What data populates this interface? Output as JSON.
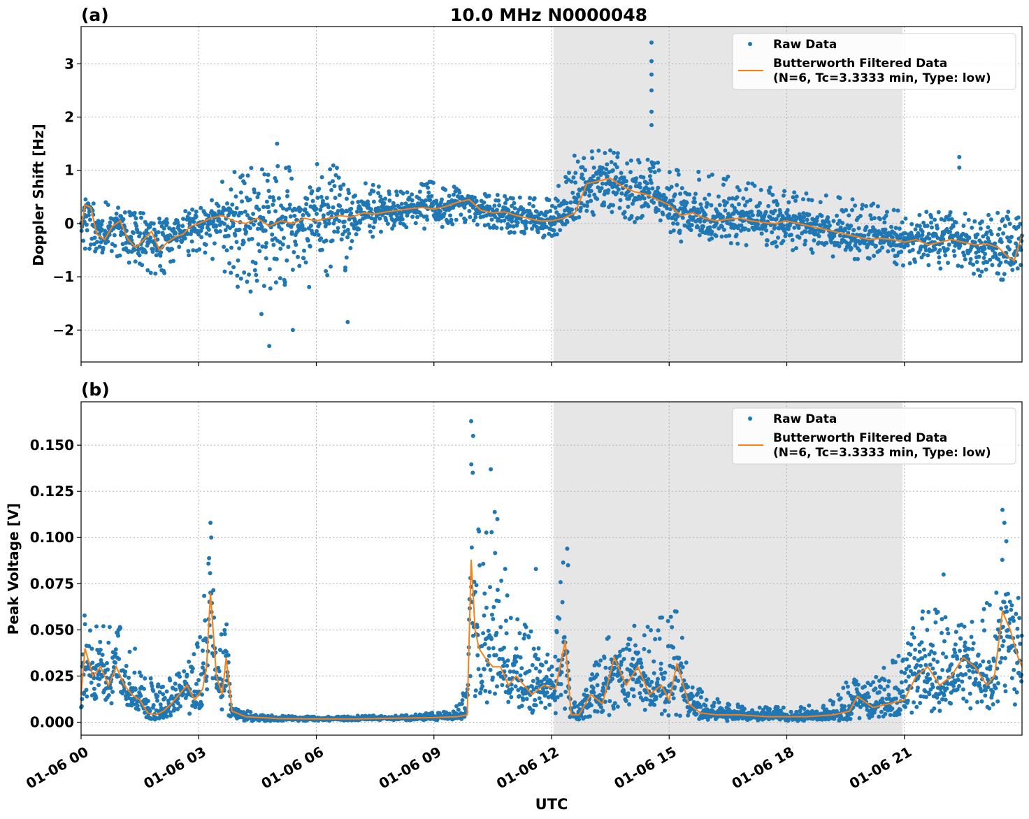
{
  "figure": {
    "title": "10.0 MHz N0000048",
    "xlabel": "UTC",
    "x_tick_labels": [
      "01-06 00",
      "01-06 03",
      "01-06 06",
      "01-06 09",
      "01-06 12",
      "01-06 15",
      "01-06 18",
      "01-06 21"
    ]
  },
  "legend": {
    "raw": "Raw Data",
    "filtered_line1": "Butterworth Filtered Data",
    "filtered_line2": "(N=6, Tc=3.3333 min, Type: low)"
  },
  "colors": {
    "raw": "#1f77b4",
    "filtered": "#ff7f0e",
    "shade": "#e6e6e6",
    "grid": "#b0b0b0"
  },
  "chart_data": [
    {
      "type": "scatter",
      "panel_label": "(a)",
      "title": "10.0 MHz N0000048",
      "ylabel": "Doppler Shift [Hz]",
      "y_tick_labels": [
        "−2",
        "−1",
        "0",
        "1",
        "2",
        "3"
      ],
      "y_ticks": [
        -2,
        -1,
        0,
        1,
        2,
        3
      ],
      "xlim": [
        0,
        24
      ],
      "ylim": [
        -2.6,
        3.7
      ],
      "x_unit": "hours UTC on 01-06",
      "shaded_interval": [
        12.05,
        20.95
      ],
      "legend_placement": "top-right",
      "grid": true,
      "series": [
        {
          "name": "Butterworth Filtered Data",
          "kind": "line",
          "x": [
            0.0,
            0.1,
            0.25,
            0.4,
            0.6,
            0.8,
            1.0,
            1.2,
            1.4,
            1.6,
            1.8,
            2.0,
            2.2,
            2.4,
            2.6,
            2.8,
            3.0,
            3.3,
            3.6,
            3.9,
            4.2,
            4.5,
            4.8,
            5.1,
            5.4,
            5.7,
            6.0,
            6.3,
            6.6,
            6.9,
            7.2,
            7.5,
            7.8,
            8.1,
            8.4,
            8.7,
            9.0,
            9.3,
            9.6,
            9.9,
            10.2,
            10.5,
            10.8,
            11.1,
            11.4,
            11.7,
            12.0,
            12.3,
            12.6,
            12.9,
            13.2,
            13.5,
            13.8,
            14.1,
            14.4,
            14.7,
            15.0,
            15.3,
            15.6,
            15.9,
            16.2,
            16.5,
            16.8,
            17.1,
            17.4,
            17.7,
            18.0,
            18.3,
            18.6,
            18.9,
            19.2,
            19.5,
            19.8,
            20.1,
            20.4,
            20.7,
            21.0,
            21.3,
            21.6,
            21.9,
            22.2,
            22.5,
            22.8,
            23.1,
            23.4,
            23.6,
            23.8,
            24.0
          ],
          "y": [
            -0.1,
            0.35,
            0.3,
            -0.2,
            -0.3,
            -0.05,
            0.05,
            -0.3,
            -0.45,
            -0.3,
            -0.15,
            -0.5,
            -0.35,
            -0.25,
            -0.2,
            -0.05,
            0.0,
            0.1,
            0.15,
            0.05,
            0.0,
            0.1,
            -0.05,
            0.05,
            0.0,
            0.1,
            0.05,
            0.1,
            0.15,
            0.12,
            0.2,
            0.18,
            0.22,
            0.25,
            0.28,
            0.3,
            0.27,
            0.32,
            0.4,
            0.45,
            0.25,
            0.2,
            0.22,
            0.15,
            0.1,
            0.05,
            0.05,
            0.1,
            0.2,
            0.75,
            0.8,
            0.85,
            0.7,
            0.6,
            0.55,
            0.45,
            0.35,
            0.15,
            0.2,
            0.1,
            0.05,
            0.08,
            0.1,
            0.05,
            0.02,
            0.0,
            0.05,
            0.0,
            -0.05,
            -0.1,
            -0.15,
            -0.2,
            -0.25,
            -0.3,
            -0.28,
            -0.3,
            -0.35,
            -0.3,
            -0.4,
            -0.35,
            -0.3,
            -0.35,
            -0.4,
            -0.38,
            -0.45,
            -0.6,
            -0.7,
            -0.2
          ]
        },
        {
          "name": "Raw Data",
          "kind": "points",
          "spread_envelope": {
            "x": [
              0,
              1,
              2,
              3,
              3.8,
              5,
              6,
              6.9,
              7.5,
              8,
              9,
              10,
              11,
              12,
              12.6,
              13.5,
              14.5,
              15.5,
              16.5,
              18,
              19.5,
              21,
              22.5,
              23.5,
              24
            ],
            "lower": [
              -0.5,
              -0.7,
              -1.0,
              -0.5,
              -1.3,
              -1.4,
              -1.2,
              -0.9,
              -0.2,
              -0.1,
              -0.1,
              0.0,
              -0.2,
              -0.3,
              0.1,
              0.2,
              -0.1,
              -0.4,
              -0.4,
              -0.5,
              -0.7,
              -0.8,
              -0.9,
              -1.1,
              -0.8
            ],
            "upper": [
              0.6,
              0.3,
              0.2,
              0.3,
              1.0,
              1.1,
              1.2,
              1.0,
              0.7,
              0.7,
              0.8,
              0.6,
              0.5,
              0.5,
              1.4,
              1.4,
              1.2,
              1.0,
              0.9,
              0.6,
              0.5,
              0.3,
              0.2,
              0.2,
              0.3
            ]
          },
          "outliers_x": [
            14.55,
            14.55,
            14.55,
            14.55,
            14.55,
            14.55,
            22.4,
            22.4,
            5.0,
            4.8,
            5.4,
            6.8,
            4.6
          ],
          "outliers_y": [
            3.4,
            3.05,
            2.8,
            2.5,
            2.1,
            1.85,
            1.25,
            1.05,
            1.5,
            -2.3,
            -2.0,
            -1.85,
            -1.7
          ]
        }
      ]
    },
    {
      "type": "scatter",
      "panel_label": "(b)",
      "ylabel": "Peak Voltage [V]",
      "y_tick_labels": [
        "0.000",
        "0.025",
        "0.050",
        "0.075",
        "0.100",
        "0.125",
        "0.150"
      ],
      "y_ticks": [
        0,
        0.025,
        0.05,
        0.075,
        0.1,
        0.125,
        0.15
      ],
      "xlim": [
        0,
        24
      ],
      "ylim": [
        -0.007,
        0.1735
      ],
      "x_unit": "hours UTC on 01-06",
      "shaded_interval": [
        12.05,
        20.95
      ],
      "legend_placement": "top-right",
      "grid": true,
      "series": [
        {
          "name": "Butterworth Filtered Data",
          "kind": "line",
          "x": [
            0.0,
            0.1,
            0.3,
            0.5,
            0.7,
            0.9,
            1.1,
            1.3,
            1.5,
            1.7,
            1.9,
            2.1,
            2.3,
            2.5,
            2.7,
            2.9,
            3.1,
            3.2,
            3.3,
            3.45,
            3.6,
            3.7,
            3.85,
            4.2,
            5,
            6,
            7,
            8,
            9,
            9.6,
            9.85,
            9.95,
            10.05,
            10.15,
            10.3,
            10.5,
            10.7,
            10.9,
            11.1,
            11.3,
            11.5,
            11.8,
            12.1,
            12.35,
            12.5,
            12.7,
            13.0,
            13.3,
            13.6,
            13.9,
            14.2,
            14.5,
            14.8,
            15.0,
            15.2,
            15.5,
            15.8,
            16.2,
            16.8,
            17.5,
            18.5,
            19.2,
            19.6,
            19.8,
            20.2,
            20.6,
            21.0,
            21.3,
            21.6,
            21.9,
            22.2,
            22.5,
            22.8,
            23.1,
            23.3,
            23.5,
            23.7,
            23.9,
            24.0
          ],
          "y": [
            0.015,
            0.04,
            0.025,
            0.03,
            0.02,
            0.03,
            0.02,
            0.015,
            0.012,
            0.005,
            0.004,
            0.006,
            0.01,
            0.015,
            0.02,
            0.012,
            0.018,
            0.03,
            0.07,
            0.025,
            0.015,
            0.035,
            0.006,
            0.003,
            0.002,
            0.0018,
            0.0018,
            0.0022,
            0.0025,
            0.003,
            0.004,
            0.088,
            0.05,
            0.04,
            0.035,
            0.03,
            0.03,
            0.02,
            0.025,
            0.02,
            0.015,
            0.02,
            0.018,
            0.044,
            0.004,
            0.004,
            0.015,
            0.01,
            0.035,
            0.02,
            0.03,
            0.015,
            0.02,
            0.012,
            0.032,
            0.01,
            0.005,
            0.004,
            0.004,
            0.003,
            0.003,
            0.004,
            0.006,
            0.014,
            0.008,
            0.01,
            0.012,
            0.025,
            0.03,
            0.02,
            0.025,
            0.035,
            0.03,
            0.02,
            0.025,
            0.06,
            0.05,
            0.035,
            0.03
          ]
        },
        {
          "name": "Raw Data",
          "kind": "points",
          "spread_envelope": {
            "x": [
              0,
              0.5,
              1,
              1.5,
              1.9,
              2.5,
              3,
              3.3,
              3.5,
              3.7,
              3.85,
              4.5,
              6,
              8,
              9.5,
              9.85,
              9.95,
              10.1,
              10.5,
              11,
              11.5,
              12,
              12.3,
              12.5,
              12.7,
              13.5,
              14.5,
              15.2,
              15.6,
              16.5,
              18,
              19,
              19.6,
              20,
              21,
              21.5,
              22,
              22.5,
              23,
              23.5,
              24
            ],
            "lower": [
              0.008,
              0.01,
              0.008,
              0.004,
              0.001,
              0.004,
              0.005,
              0.01,
              0.006,
              0.005,
              0.001,
              0.0005,
              0.0008,
              0.001,
              0.0012,
              0.002,
              0.01,
              0.01,
              0.008,
              0.007,
              0.005,
              0.004,
              0.006,
              0.002,
              0.001,
              0.004,
              0.003,
              0.004,
              0.001,
              0.0005,
              0.0005,
              0.0008,
              0.001,
              0.002,
              0.004,
              0.006,
              0.006,
              0.008,
              0.006,
              0.008,
              0.01
            ],
            "upper": [
              0.06,
              0.055,
              0.055,
              0.035,
              0.02,
              0.03,
              0.045,
              0.1,
              0.04,
              0.06,
              0.01,
              0.004,
              0.003,
              0.004,
              0.006,
              0.02,
              0.16,
              0.11,
              0.13,
              0.06,
              0.05,
              0.035,
              0.09,
              0.01,
              0.012,
              0.05,
              0.055,
              0.06,
              0.02,
              0.01,
              0.008,
              0.01,
              0.025,
              0.02,
              0.04,
              0.07,
              0.06,
              0.055,
              0.06,
              0.1,
              0.06
            ]
          },
          "outliers_x": [
            3.3,
            3.32,
            9.95,
            10.0,
            10.45,
            12.4,
            12.42,
            22.0,
            23.5,
            23.55,
            23.6,
            11.6,
            15.15
          ],
          "outliers_y": [
            0.108,
            0.1,
            0.163,
            0.155,
            0.137,
            0.094,
            0.085,
            0.08,
            0.115,
            0.108,
            0.098,
            0.083,
            0.06
          ]
        }
      ]
    }
  ]
}
